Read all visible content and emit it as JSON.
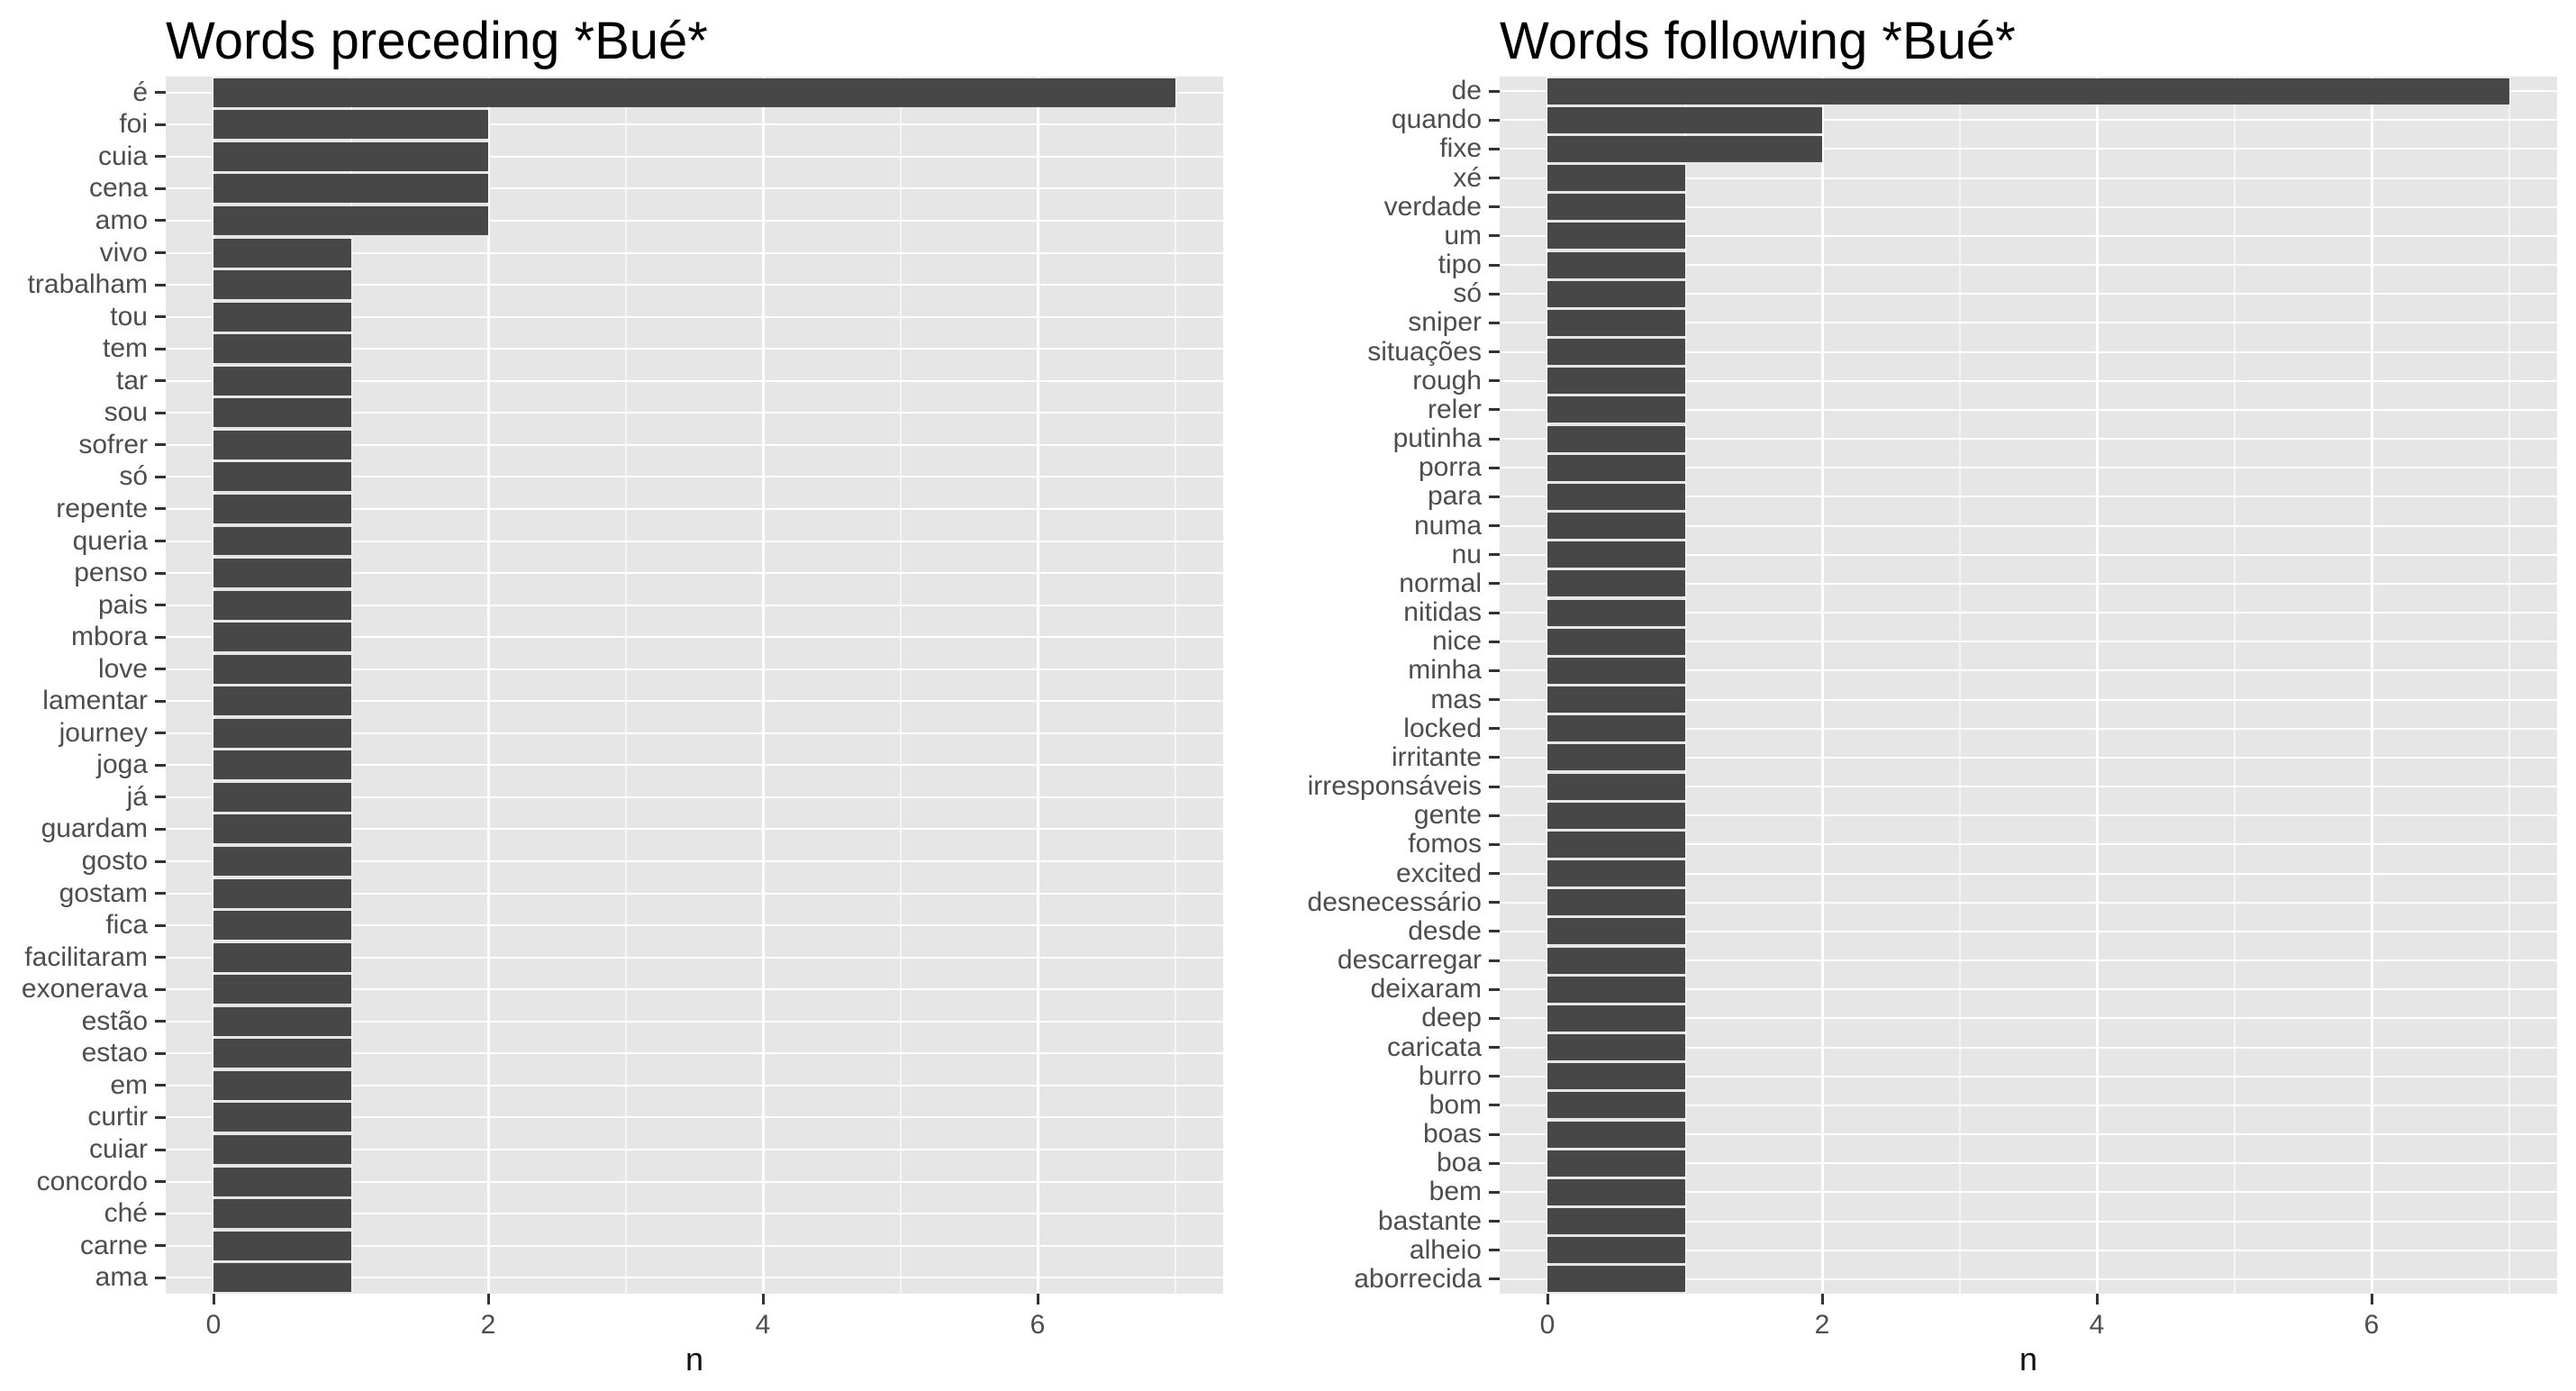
{
  "colors": {
    "bar_fill": "#474747",
    "panel_bg": "#E6E6E6",
    "grid_major": "#FFFFFF",
    "grid_minor": "#F5F5F5",
    "axis_text": "#4D4D4D",
    "tick_mark": "#333333",
    "title_color": "#000000",
    "background": "#FFFFFF"
  },
  "chart_data": [
    {
      "type": "bar",
      "orientation": "horizontal",
      "title": "Words preceding *Bué*",
      "xlabel": "n",
      "ylabel": "",
      "x_ticks": [
        0,
        2,
        4,
        6
      ],
      "x_minor_ticks": [
        1,
        3,
        5,
        7
      ],
      "xlim": [
        -0.35,
        7.35
      ],
      "grid": true,
      "legend": "none",
      "categories": [
        "é",
        "foi",
        "cuia",
        "cena",
        "amo",
        "vivo",
        "trabalham",
        "tou",
        "tem",
        "tar",
        "sou",
        "sofrer",
        "só",
        "repente",
        "queria",
        "penso",
        "pais",
        "mbora",
        "love",
        "lamentar",
        "journey",
        "joga",
        "já",
        "guardam",
        "gosto",
        "gostam",
        "fica",
        "facilitaram",
        "exonerava",
        "estão",
        "estao",
        "em",
        "curtir",
        "cuiar",
        "concordo",
        "ché",
        "carne",
        "ama"
      ],
      "values": [
        7,
        2,
        2,
        2,
        2,
        1,
        1,
        1,
        1,
        1,
        1,
        1,
        1,
        1,
        1,
        1,
        1,
        1,
        1,
        1,
        1,
        1,
        1,
        1,
        1,
        1,
        1,
        1,
        1,
        1,
        1,
        1,
        1,
        1,
        1,
        1,
        1,
        1
      ]
    },
    {
      "type": "bar",
      "orientation": "horizontal",
      "title": "Words following *Bué*",
      "xlabel": "n",
      "ylabel": "",
      "x_ticks": [
        0,
        2,
        4,
        6
      ],
      "x_minor_ticks": [
        1,
        3,
        5,
        7
      ],
      "xlim": [
        -0.35,
        7.35
      ],
      "grid": true,
      "legend": "none",
      "categories": [
        "de",
        "quando",
        "fixe",
        "xé",
        "verdade",
        "um",
        "tipo",
        "só",
        "sniper",
        "situações",
        "rough",
        "reler",
        "putinha",
        "porra",
        "para",
        "numa",
        "nu",
        "normal",
        "nitidas",
        "nice",
        "minha",
        "mas",
        "locked",
        "irritante",
        "irresponsáveis",
        "gente",
        "fomos",
        "excited",
        "desnecessário",
        "desde",
        "descarregar",
        "deixaram",
        "deep",
        "caricata",
        "burro",
        "bom",
        "boas",
        "boa",
        "bem",
        "bastante",
        "alheio",
        "aborrecida"
      ],
      "values": [
        7,
        2,
        2,
        1,
        1,
        1,
        1,
        1,
        1,
        1,
        1,
        1,
        1,
        1,
        1,
        1,
        1,
        1,
        1,
        1,
        1,
        1,
        1,
        1,
        1,
        1,
        1,
        1,
        1,
        1,
        1,
        1,
        1,
        1,
        1,
        1,
        1,
        1,
        1,
        1,
        1,
        1
      ]
    }
  ]
}
